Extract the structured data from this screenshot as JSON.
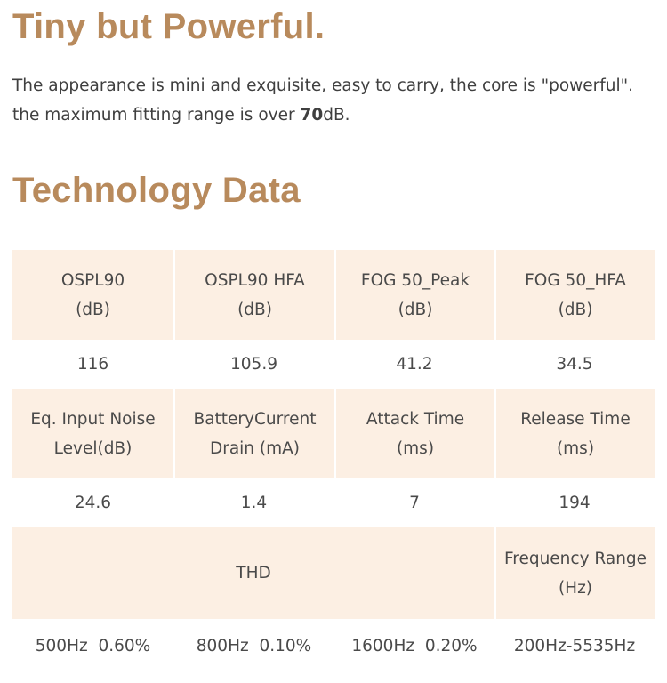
{
  "heading": "Tiny but Powerful.",
  "intro": {
    "line1": "The appearance is mini and exquisite, easy to carry, the core is \"powerful\".",
    "line2_before": "the maximum fitting range is over ",
    "line2_value": "70",
    "line2_after": "dB."
  },
  "section_title": "Technology Data",
  "table": {
    "row1": [
      {
        "l1": "OSPL90",
        "l2": "(dB)"
      },
      {
        "l1": "OSPL90 HFA",
        "l2": "(dB)"
      },
      {
        "l1": "FOG 50_Peak",
        "l2": "(dB)"
      },
      {
        "l1": "FOG 50_HFA",
        "l2": "(dB)"
      }
    ],
    "row1_values": [
      "116",
      "105.9",
      "41.2",
      "34.5"
    ],
    "row2": [
      {
        "l1": "Eq. Input Noise",
        "l2": "Level(dB)"
      },
      {
        "l1": "BatteryCurrent",
        "l2": "Drain (mA)"
      },
      {
        "l1": "Attack Time",
        "l2": "(ms)"
      },
      {
        "l1": "Release Time",
        "l2": "(ms)"
      }
    ],
    "row2_values": [
      "24.6",
      "1.4",
      "7",
      "194"
    ],
    "row3": {
      "thd": "THD",
      "freq_l1": "Frequency Range",
      "freq_l2": "(Hz)"
    },
    "row3_values": [
      "500Hz  0.60%",
      "800Hz  0.10%",
      "1600Hz  0.20%",
      "200Hz-5535Hz"
    ]
  }
}
